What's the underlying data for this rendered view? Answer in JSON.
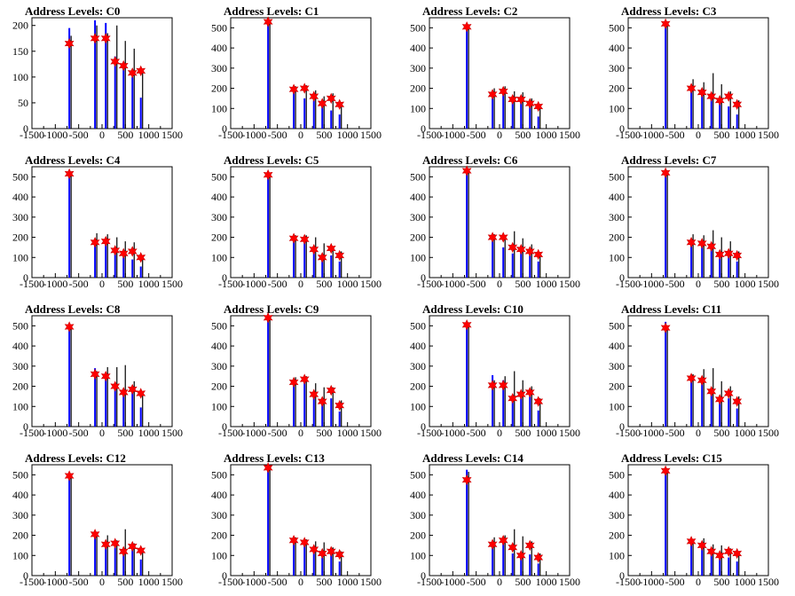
{
  "chart_data": [
    {
      "type": "bar",
      "title": "Address Levels: C0",
      "xlim": [
        -1500,
        1500
      ],
      "ylim": [
        0,
        215
      ],
      "yticks": [
        50,
        100,
        150,
        200
      ],
      "xticks": [
        -1500,
        -1000,
        -500,
        0,
        500,
        1000,
        1500
      ],
      "peaks": [
        {
          "x": -700,
          "blue": 195,
          "black": 180,
          "star": 165
        },
        {
          "x": -150,
          "blue": 210,
          "black": 200,
          "star": 175
        },
        {
          "x": 80,
          "blue": 205,
          "black": 185,
          "star": 175
        },
        {
          "x": 280,
          "blue": 140,
          "black": 200,
          "star": 130
        },
        {
          "x": 460,
          "blue": 120,
          "black": 170,
          "star": 122
        },
        {
          "x": 650,
          "blue": 100,
          "black": 155,
          "star": 108
        },
        {
          "x": 830,
          "blue": 60,
          "black": 115,
          "star": 112
        }
      ]
    },
    {
      "type": "bar",
      "title": "Address Levels: C1",
      "xlim": [
        -1500,
        1500
      ],
      "ylim": [
        0,
        550
      ],
      "yticks": [
        100,
        200,
        300,
        400,
        500
      ],
      "xticks": [
        -1500,
        -1000,
        -500,
        0,
        500,
        1000,
        1500
      ],
      "peaks": [
        {
          "x": -700,
          "blue": 540,
          "black": 520,
          "star": 530
        },
        {
          "x": -150,
          "blue": 180,
          "black": 210,
          "star": 195
        },
        {
          "x": 80,
          "blue": 150,
          "black": 215,
          "star": 200
        },
        {
          "x": 280,
          "blue": 140,
          "black": 190,
          "star": 160
        },
        {
          "x": 460,
          "blue": 110,
          "black": 160,
          "star": 125
        },
        {
          "x": 650,
          "blue": 90,
          "black": 175,
          "star": 150
        },
        {
          "x": 830,
          "blue": 70,
          "black": 130,
          "star": 120
        }
      ]
    },
    {
      "type": "bar",
      "title": "Address Levels: C2",
      "xlim": [
        -1500,
        1500
      ],
      "ylim": [
        0,
        550
      ],
      "yticks": [
        100,
        200,
        300,
        400,
        500
      ],
      "xticks": [
        -1500,
        -1000,
        -500,
        0,
        500,
        1000,
        1500
      ],
      "peaks": [
        {
          "x": -700,
          "blue": 510,
          "black": 500,
          "star": 505
        },
        {
          "x": -150,
          "blue": 150,
          "black": 200,
          "star": 170
        },
        {
          "x": 80,
          "blue": 170,
          "black": 210,
          "star": 185
        },
        {
          "x": 280,
          "blue": 140,
          "black": 185,
          "star": 145
        },
        {
          "x": 460,
          "blue": 160,
          "black": 180,
          "star": 145
        },
        {
          "x": 650,
          "blue": 110,
          "black": 150,
          "star": 125
        },
        {
          "x": 830,
          "blue": 60,
          "black": 120,
          "star": 110
        }
      ]
    },
    {
      "type": "bar",
      "title": "Address Levels: C3",
      "xlim": [
        -1500,
        1500
      ],
      "ylim": [
        0,
        550
      ],
      "yticks": [
        100,
        200,
        300,
        400,
        500
      ],
      "xticks": [
        -1500,
        -1000,
        -500,
        0,
        500,
        1000,
        1500
      ],
      "peaks": [
        {
          "x": -700,
          "blue": 525,
          "black": 510,
          "star": 520
        },
        {
          "x": -150,
          "blue": 190,
          "black": 245,
          "star": 200
        },
        {
          "x": 80,
          "blue": 165,
          "black": 230,
          "star": 180
        },
        {
          "x": 280,
          "blue": 150,
          "black": 275,
          "star": 160
        },
        {
          "x": 460,
          "blue": 130,
          "black": 220,
          "star": 140
        },
        {
          "x": 650,
          "blue": 110,
          "black": 185,
          "star": 160
        },
        {
          "x": 830,
          "blue": 70,
          "black": 140,
          "star": 120
        }
      ]
    },
    {
      "type": "bar",
      "title": "Address Levels: C4",
      "xlim": [
        -1500,
        1500
      ],
      "ylim": [
        0,
        550
      ],
      "yticks": [
        100,
        200,
        300,
        400,
        500
      ],
      "xticks": [
        -1500,
        -1000,
        -500,
        0,
        500,
        1000,
        1500
      ],
      "peaks": [
        {
          "x": -700,
          "blue": 520,
          "black": 510,
          "star": 515
        },
        {
          "x": -150,
          "blue": 170,
          "black": 220,
          "star": 175
        },
        {
          "x": 80,
          "blue": 165,
          "black": 215,
          "star": 180
        },
        {
          "x": 280,
          "blue": 135,
          "black": 200,
          "star": 135
        },
        {
          "x": 460,
          "blue": 100,
          "black": 180,
          "star": 120
        },
        {
          "x": 650,
          "blue": 90,
          "black": 175,
          "star": 130
        },
        {
          "x": 830,
          "blue": 55,
          "black": 110,
          "star": 100
        }
      ]
    },
    {
      "type": "bar",
      "title": "Address Levels: C5",
      "xlim": [
        -1500,
        1500
      ],
      "ylim": [
        0,
        550
      ],
      "yticks": [
        100,
        200,
        300,
        400,
        500
      ],
      "xticks": [
        -1500,
        -1000,
        -500,
        0,
        500,
        1000,
        1500
      ],
      "peaks": [
        {
          "x": -700,
          "blue": 520,
          "black": 505,
          "star": 510
        },
        {
          "x": -150,
          "blue": 180,
          "black": 210,
          "star": 195
        },
        {
          "x": 80,
          "blue": 175,
          "black": 210,
          "star": 190
        },
        {
          "x": 280,
          "blue": 130,
          "black": 200,
          "star": 140
        },
        {
          "x": 460,
          "blue": 85,
          "black": 170,
          "star": 100
        },
        {
          "x": 650,
          "blue": 110,
          "black": 150,
          "star": 145
        },
        {
          "x": 830,
          "blue": 80,
          "black": 130,
          "star": 110
        }
      ]
    },
    {
      "type": "bar",
      "title": "Address Levels: C6",
      "xlim": [
        -1500,
        1500
      ],
      "ylim": [
        0,
        550
      ],
      "yticks": [
        100,
        200,
        300,
        400,
        500
      ],
      "xticks": [
        -1500,
        -1000,
        -500,
        0,
        500,
        1000,
        1500
      ],
      "peaks": [
        {
          "x": -700,
          "blue": 540,
          "black": 530,
          "star": 530
        },
        {
          "x": -150,
          "blue": 195,
          "black": 215,
          "star": 200
        },
        {
          "x": 80,
          "blue": 150,
          "black": 210,
          "star": 200
        },
        {
          "x": 280,
          "blue": 120,
          "black": 230,
          "star": 150
        },
        {
          "x": 460,
          "blue": 150,
          "black": 195,
          "star": 140
        },
        {
          "x": 650,
          "blue": 110,
          "black": 165,
          "star": 130
        },
        {
          "x": 830,
          "blue": 80,
          "black": 120,
          "star": 115
        }
      ]
    },
    {
      "type": "bar",
      "title": "Address Levels: C7",
      "xlim": [
        -1500,
        1500
      ],
      "ylim": [
        0,
        550
      ],
      "yticks": [
        100,
        200,
        300,
        400,
        500
      ],
      "xticks": [
        -1500,
        -1000,
        -500,
        0,
        500,
        1000,
        1500
      ],
      "peaks": [
        {
          "x": -700,
          "blue": 525,
          "black": 515,
          "star": 520
        },
        {
          "x": -150,
          "blue": 170,
          "black": 215,
          "star": 175
        },
        {
          "x": 80,
          "blue": 160,
          "black": 210,
          "star": 170
        },
        {
          "x": 280,
          "blue": 150,
          "black": 235,
          "star": 155
        },
        {
          "x": 460,
          "blue": 95,
          "black": 200,
          "star": 115
        },
        {
          "x": 650,
          "blue": 120,
          "black": 180,
          "star": 120
        },
        {
          "x": 830,
          "blue": 80,
          "black": 130,
          "star": 110
        }
      ]
    },
    {
      "type": "bar",
      "title": "Address Levels: C8",
      "xlim": [
        -1500,
        1500
      ],
      "ylim": [
        0,
        550
      ],
      "yticks": [
        100,
        200,
        300,
        400,
        500
      ],
      "xticks": [
        -1500,
        -1000,
        -500,
        0,
        500,
        1000,
        1500
      ],
      "peaks": [
        {
          "x": -700,
          "blue": 510,
          "black": 495,
          "star": 495
        },
        {
          "x": -150,
          "blue": 290,
          "black": 275,
          "star": 260
        },
        {
          "x": 80,
          "blue": 260,
          "black": 295,
          "star": 250
        },
        {
          "x": 280,
          "blue": 210,
          "black": 295,
          "star": 200
        },
        {
          "x": 460,
          "blue": 160,
          "black": 305,
          "star": 170
        },
        {
          "x": 650,
          "blue": 170,
          "black": 225,
          "star": 185
        },
        {
          "x": 830,
          "blue": 95,
          "black": 170,
          "star": 165
        }
      ]
    },
    {
      "type": "bar",
      "title": "Address Levels: C9",
      "xlim": [
        -1500,
        1500
      ],
      "ylim": [
        0,
        550
      ],
      "yticks": [
        100,
        200,
        300,
        400,
        500
      ],
      "xticks": [
        -1500,
        -1000,
        -500,
        0,
        500,
        1000,
        1500
      ],
      "peaks": [
        {
          "x": -700,
          "blue": 550,
          "black": 545,
          "star": 540
        },
        {
          "x": -150,
          "blue": 210,
          "black": 245,
          "star": 220
        },
        {
          "x": 80,
          "blue": 220,
          "black": 250,
          "star": 235
        },
        {
          "x": 280,
          "blue": 150,
          "black": 215,
          "star": 160
        },
        {
          "x": 460,
          "blue": 110,
          "black": 195,
          "star": 125
        },
        {
          "x": 650,
          "blue": 140,
          "black": 195,
          "star": 180
        },
        {
          "x": 830,
          "blue": 75,
          "black": 130,
          "star": 105
        }
      ]
    },
    {
      "type": "bar",
      "title": "Address Levels: C10",
      "xlim": [
        -1500,
        1500
      ],
      "ylim": [
        0,
        550
      ],
      "yticks": [
        100,
        200,
        300,
        400,
        500
      ],
      "xticks": [
        -1500,
        -1000,
        -500,
        0,
        500,
        1000,
        1500
      ],
      "peaks": [
        {
          "x": -700,
          "blue": 510,
          "black": 500,
          "star": 505
        },
        {
          "x": -150,
          "blue": 255,
          "black": 230,
          "star": 205
        },
        {
          "x": 80,
          "blue": 230,
          "black": 250,
          "star": 205
        },
        {
          "x": 280,
          "blue": 150,
          "black": 275,
          "star": 140
        },
        {
          "x": 460,
          "blue": 140,
          "black": 230,
          "star": 160
        },
        {
          "x": 650,
          "blue": 150,
          "black": 200,
          "star": 170
        },
        {
          "x": 830,
          "blue": 80,
          "black": 140,
          "star": 125
        }
      ]
    },
    {
      "type": "bar",
      "title": "Address Levels: C11",
      "xlim": [
        -1500,
        1500
      ],
      "ylim": [
        0,
        550
      ],
      "yticks": [
        100,
        200,
        300,
        400,
        500
      ],
      "xticks": [
        -1500,
        -1000,
        -500,
        0,
        500,
        1000,
        1500
      ],
      "peaks": [
        {
          "x": -700,
          "blue": 520,
          "black": 500,
          "star": 490
        },
        {
          "x": -150,
          "blue": 245,
          "black": 260,
          "star": 240
        },
        {
          "x": 80,
          "blue": 220,
          "black": 285,
          "star": 230
        },
        {
          "x": 280,
          "blue": 160,
          "black": 290,
          "star": 175
        },
        {
          "x": 460,
          "blue": 130,
          "black": 225,
          "star": 135
        },
        {
          "x": 650,
          "blue": 140,
          "black": 200,
          "star": 165
        },
        {
          "x": 830,
          "blue": 90,
          "black": 150,
          "star": 125
        }
      ]
    },
    {
      "type": "bar",
      "title": "Address Levels: C12",
      "xlim": [
        -1500,
        1500
      ],
      "ylim": [
        0,
        550
      ],
      "yticks": [
        100,
        200,
        300,
        400,
        500
      ],
      "xticks": [
        -1500,
        -1000,
        -500,
        0,
        500,
        1000,
        1500
      ],
      "peaks": [
        {
          "x": -700,
          "blue": 510,
          "black": 500,
          "star": 495
        },
        {
          "x": -150,
          "blue": 205,
          "black": 210,
          "star": 205
        },
        {
          "x": 80,
          "blue": 150,
          "black": 200,
          "star": 155
        },
        {
          "x": 280,
          "blue": 140,
          "black": 175,
          "star": 160
        },
        {
          "x": 460,
          "blue": 115,
          "black": 230,
          "star": 120
        },
        {
          "x": 650,
          "blue": 130,
          "black": 160,
          "star": 145
        },
        {
          "x": 830,
          "blue": 80,
          "black": 120,
          "star": 125
        }
      ]
    },
    {
      "type": "bar",
      "title": "Address Levels: C13",
      "xlim": [
        -1500,
        1500
      ],
      "ylim": [
        0,
        550
      ],
      "yticks": [
        100,
        200,
        300,
        400,
        500
      ],
      "xticks": [
        -1500,
        -1000,
        -500,
        0,
        500,
        1000,
        1500
      ],
      "peaks": [
        {
          "x": -700,
          "blue": 545,
          "black": 535,
          "star": 535
        },
        {
          "x": -150,
          "blue": 165,
          "black": 190,
          "star": 175
        },
        {
          "x": 80,
          "blue": 155,
          "black": 180,
          "star": 165
        },
        {
          "x": 280,
          "blue": 120,
          "black": 170,
          "star": 130
        },
        {
          "x": 460,
          "blue": 90,
          "black": 165,
          "star": 110
        },
        {
          "x": 650,
          "blue": 105,
          "black": 140,
          "star": 120
        },
        {
          "x": 830,
          "blue": 70,
          "black": 120,
          "star": 105
        }
      ]
    },
    {
      "type": "bar",
      "title": "Address Levels: C14",
      "xlim": [
        -1500,
        1500
      ],
      "ylim": [
        0,
        550
      ],
      "yticks": [
        100,
        200,
        300,
        400,
        500
      ],
      "xticks": [
        -1500,
        -1000,
        -500,
        0,
        500,
        1000,
        1500
      ],
      "peaks": [
        {
          "x": -700,
          "blue": 525,
          "black": 515,
          "star": 475
        },
        {
          "x": -150,
          "blue": 150,
          "black": 190,
          "star": 155
        },
        {
          "x": 80,
          "blue": 175,
          "black": 200,
          "star": 175
        },
        {
          "x": 280,
          "blue": 110,
          "black": 230,
          "star": 140
        },
        {
          "x": 460,
          "blue": 90,
          "black": 195,
          "star": 100
        },
        {
          "x": 650,
          "blue": 105,
          "black": 170,
          "star": 150
        },
        {
          "x": 830,
          "blue": 60,
          "black": 110,
          "star": 90
        }
      ]
    },
    {
      "type": "bar",
      "title": "Address Levels: C15",
      "xlim": [
        -1500,
        1500
      ],
      "ylim": [
        0,
        550
      ],
      "yticks": [
        100,
        200,
        300,
        400,
        500
      ],
      "xticks": [
        -1500,
        -1000,
        -500,
        0,
        500,
        1000,
        1500
      ],
      "peaks": [
        {
          "x": -700,
          "blue": 530,
          "black": 520,
          "star": 520
        },
        {
          "x": -150,
          "blue": 160,
          "black": 180,
          "star": 170
        },
        {
          "x": 80,
          "blue": 140,
          "black": 185,
          "star": 150
        },
        {
          "x": 280,
          "blue": 120,
          "black": 155,
          "star": 120
        },
        {
          "x": 460,
          "blue": 85,
          "black": 150,
          "star": 100
        },
        {
          "x": 650,
          "blue": 90,
          "black": 135,
          "star": 120
        },
        {
          "x": 830,
          "blue": 70,
          "black": 110,
          "star": 110
        }
      ]
    }
  ],
  "colors": {
    "blue_series": "#0000ff",
    "black_series": "#000000",
    "star_marker": "#ff0000",
    "axis": "#000000"
  }
}
